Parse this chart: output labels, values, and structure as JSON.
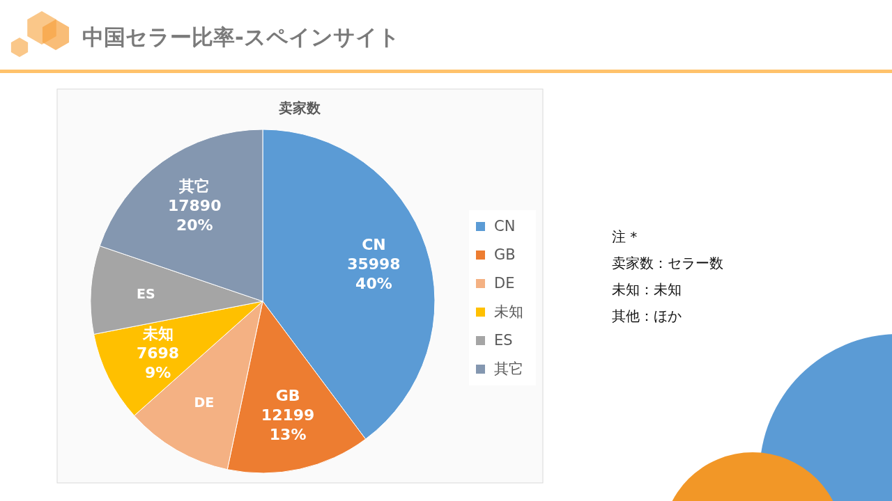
{
  "chart_data": {
    "type": "pie",
    "title": "中国セラー比率-スペインサイト",
    "subtitle": "卖家数",
    "categories": [
      "CN",
      "GB",
      "DE",
      "未知",
      "ES",
      "其它"
    ],
    "values": [
      35998,
      12199,
      9150,
      7698,
      7500,
      17890
    ],
    "colors": [
      "#5b9bd5",
      "#ed7d31",
      "#f4b183",
      "#ffc000",
      "#a5a5a5",
      "#8497b0"
    ],
    "value_labels": [
      "35998\n40%",
      "12199\n13%",
      null,
      "7698\n9%",
      null,
      "17890\n20%"
    ],
    "legend": "right",
    "annotations": [
      "注 *",
      "卖家数：セラー数",
      "未知：未知",
      "其他：ほか"
    ]
  }
}
